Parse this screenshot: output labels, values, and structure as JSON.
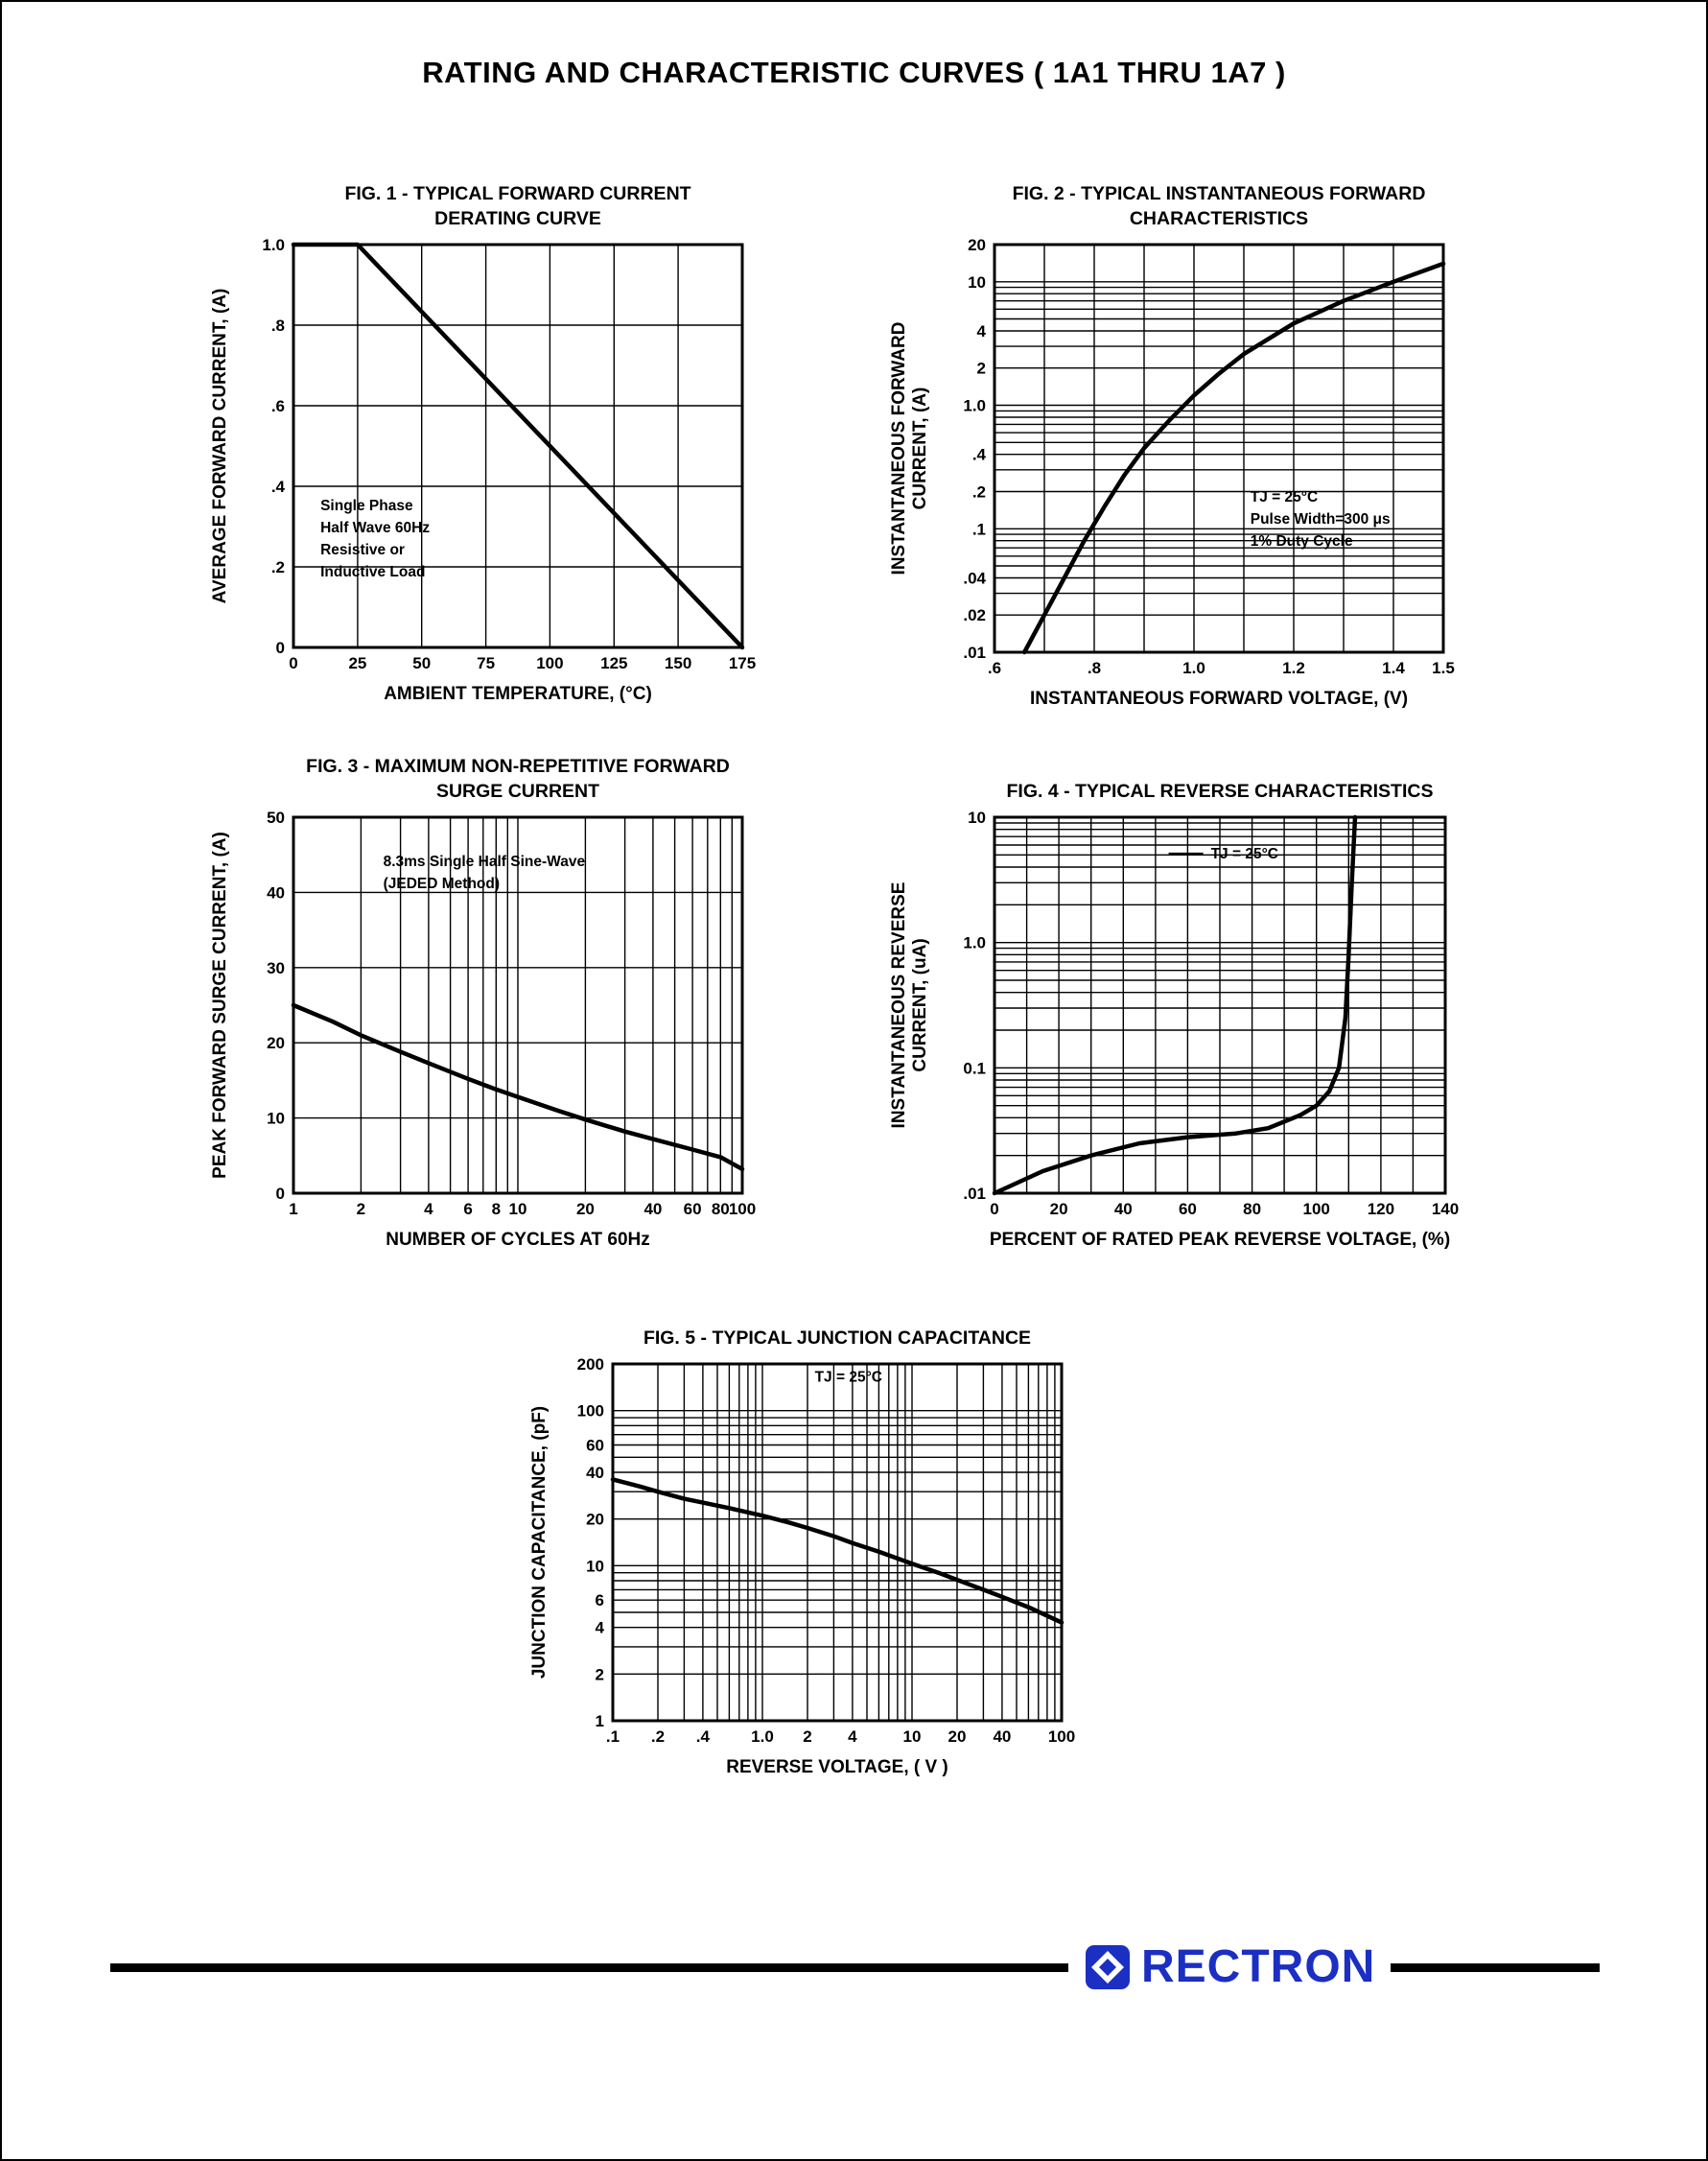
{
  "page": {
    "title": "RATING AND CHARACTERISTIC CURVES ( 1A1 THRU 1A7 )"
  },
  "footer": {
    "brand": "RECTRON",
    "icon": "rectron-mark"
  },
  "colors": {
    "brand_blue": "#1b2fc2",
    "ink": "#000000"
  },
  "chart_data": [
    {
      "type": "line",
      "title_line1": "FIG. 1 - TYPICAL FORWARD CURRENT",
      "title_line2": "DERATING CURVE",
      "xlabel": "AMBIENT TEMPERATURE, (°C)",
      "ylabel": "AVERAGE FORWARD CURRENT, (A)",
      "x": {
        "scale": "linear",
        "min": 0,
        "max": 175,
        "grid_step": 25,
        "ticks": [
          [
            0,
            "0"
          ],
          [
            25,
            "25"
          ],
          [
            50,
            "50"
          ],
          [
            75,
            "75"
          ],
          [
            100,
            "100"
          ],
          [
            125,
            "125"
          ],
          [
            150,
            "150"
          ],
          [
            175,
            "175"
          ]
        ]
      },
      "y": {
        "scale": "linear",
        "min": 0,
        "max": 1.0,
        "grid_step": 0.2,
        "ticks": [
          [
            1.0,
            "1.0"
          ],
          [
            0.8,
            ".8"
          ],
          [
            0.6,
            ".6"
          ],
          [
            0.4,
            ".4"
          ],
          [
            0.2,
            ".2"
          ],
          [
            0,
            "0"
          ]
        ]
      },
      "series": [
        {
          "name": "derating",
          "points": [
            [
              0,
              1.0
            ],
            [
              25,
              1.0
            ],
            [
              175,
              0
            ]
          ]
        }
      ],
      "annotations": [
        {
          "lines": [
            "Single Phase",
            "Half Wave 60Hz",
            "Resistive or",
            "Inductive Load"
          ],
          "fx": 0.06,
          "fy": 0.66
        }
      ]
    },
    {
      "type": "line",
      "title_line1": "FIG. 2 - TYPICAL INSTANTANEOUS FORWARD",
      "title_line2": "CHARACTERISTICS",
      "xlabel": "INSTANTANEOUS FORWARD VOLTAGE, (V)",
      "ylabel": "INSTANTANEOUS FORWARD\nCURRENT, (A)",
      "x": {
        "scale": "linear",
        "min": 0.6,
        "max": 1.5,
        "grid_step": 0.1,
        "ticks": [
          [
            0.6,
            ".6"
          ],
          [
            0.8,
            ".8"
          ],
          [
            1.0,
            "1.0"
          ],
          [
            1.2,
            "1.2"
          ],
          [
            1.4,
            "1.4"
          ],
          [
            1.5,
            "1.5"
          ]
        ]
      },
      "y": {
        "scale": "log",
        "min": 0.01,
        "max": 20,
        "grid": "log",
        "ticks": [
          [
            20,
            "20"
          ],
          [
            10,
            "10"
          ],
          [
            4,
            "4"
          ],
          [
            2,
            "2"
          ],
          [
            1,
            "1.0"
          ],
          [
            0.4,
            ".4"
          ],
          [
            0.2,
            ".2"
          ],
          [
            0.1,
            ".1"
          ],
          [
            0.04,
            ".04"
          ],
          [
            0.02,
            ".02"
          ],
          [
            0.01,
            ".01"
          ]
        ]
      },
      "series": [
        {
          "name": "forward-vi",
          "points": [
            [
              0.66,
              0.01
            ],
            [
              0.7,
              0.02
            ],
            [
              0.74,
              0.04
            ],
            [
              0.78,
              0.08
            ],
            [
              0.82,
              0.15
            ],
            [
              0.86,
              0.27
            ],
            [
              0.9,
              0.45
            ],
            [
              0.95,
              0.75
            ],
            [
              1.0,
              1.2
            ],
            [
              1.05,
              1.8
            ],
            [
              1.1,
              2.6
            ],
            [
              1.2,
              4.6
            ],
            [
              1.3,
              7.0
            ],
            [
              1.4,
              10.0
            ],
            [
              1.5,
              14.0
            ]
          ]
        }
      ],
      "annotations": [
        {
          "lines": [
            "TJ = 25°C",
            "Pulse Width=300 μs",
            "1% Duty Cycle"
          ],
          "fx": 0.57,
          "fy": 0.63
        }
      ]
    },
    {
      "type": "line",
      "title_line1": "FIG. 3 - MAXIMUM NON-REPETITIVE FORWARD",
      "title_line2": "SURGE CURRENT",
      "xlabel": "NUMBER OF CYCLES AT 60Hz",
      "ylabel": "PEAK FORWARD SURGE CURRENT, (A)",
      "x": {
        "scale": "log",
        "min": 1,
        "max": 100,
        "grid": "log",
        "ticks": [
          [
            1,
            "1"
          ],
          [
            2,
            "2"
          ],
          [
            4,
            "4"
          ],
          [
            6,
            "6"
          ],
          [
            8,
            "8"
          ],
          [
            10,
            "10"
          ],
          [
            20,
            "20"
          ],
          [
            40,
            "40"
          ],
          [
            60,
            "60"
          ],
          [
            80,
            "80"
          ],
          [
            100,
            "100"
          ]
        ]
      },
      "y": {
        "scale": "linear",
        "min": 0,
        "max": 50,
        "grid_step": 10,
        "ticks": [
          [
            50,
            "50"
          ],
          [
            40,
            "40"
          ],
          [
            30,
            "30"
          ],
          [
            20,
            "20"
          ],
          [
            10,
            "10"
          ],
          [
            0,
            "0"
          ]
        ]
      },
      "series": [
        {
          "name": "surge",
          "points": [
            [
              1,
              25
            ],
            [
              1.5,
              22.8
            ],
            [
              2,
              21
            ],
            [
              3,
              18.8
            ],
            [
              4,
              17.3
            ],
            [
              6,
              15.2
            ],
            [
              8,
              13.8
            ],
            [
              10,
              12.8
            ],
            [
              15,
              11
            ],
            [
              20,
              9.8
            ],
            [
              30,
              8.2
            ],
            [
              40,
              7.2
            ],
            [
              60,
              5.8
            ],
            [
              80,
              4.8
            ],
            [
              100,
              3.2
            ]
          ]
        }
      ],
      "annotations": [
        {
          "lines": [
            "8.3ms Single Half Sine-Wave",
            "(JEDED Method)"
          ],
          "fx": 0.2,
          "fy": 0.13
        }
      ]
    },
    {
      "type": "line",
      "title_line1": "FIG. 4 - TYPICAL REVERSE CHARACTERISTICS",
      "title_line2": "",
      "xlabel": "PERCENT OF RATED PEAK REVERSE VOLTAGE, (%)",
      "ylabel": "INSTANTANEOUS REVERSE\nCURRENT, (uA)",
      "x": {
        "scale": "linear",
        "min": 0,
        "max": 140,
        "grid_step": 10,
        "ticks": [
          [
            0,
            "0"
          ],
          [
            20,
            "20"
          ],
          [
            40,
            "40"
          ],
          [
            60,
            "60"
          ],
          [
            80,
            "80"
          ],
          [
            100,
            "100"
          ],
          [
            120,
            "120"
          ],
          [
            140,
            "140"
          ]
        ]
      },
      "y": {
        "scale": "log",
        "min": 0.01,
        "max": 10,
        "grid": "log",
        "ticks": [
          [
            10,
            "10"
          ],
          [
            1,
            "1.0"
          ],
          [
            0.1,
            "0.1"
          ],
          [
            0.01,
            ".01"
          ]
        ]
      },
      "series": [
        {
          "name": "reverse-leakage",
          "points": [
            [
              0,
              0.01
            ],
            [
              15,
              0.015
            ],
            [
              30,
              0.02
            ],
            [
              45,
              0.025
            ],
            [
              60,
              0.028
            ],
            [
              75,
              0.03
            ],
            [
              85,
              0.033
            ],
            [
              95,
              0.042
            ],
            [
              100,
              0.05
            ],
            [
              104,
              0.065
            ],
            [
              107,
              0.1
            ],
            [
              109,
              0.25
            ],
            [
              110,
              0.8
            ],
            [
              111,
              3
            ],
            [
              112,
              10
            ]
          ]
        }
      ],
      "annotations": [
        {
          "lines": [
            "TJ = 25°C"
          ],
          "fx": 0.48,
          "fy": 0.11,
          "leader": true
        }
      ]
    },
    {
      "type": "line",
      "title_line1": "FIG. 5 - TYPICAL JUNCTION CAPACITANCE",
      "title_line2": "",
      "xlabel": "REVERSE VOLTAGE, ( V )",
      "ylabel": "JUNCTION CAPACITANCE, (pF)",
      "x": {
        "scale": "log",
        "min": 0.1,
        "max": 100,
        "grid": "log",
        "ticks": [
          [
            0.1,
            ".1"
          ],
          [
            0.2,
            ".2"
          ],
          [
            0.4,
            ".4"
          ],
          [
            1,
            "1.0"
          ],
          [
            2,
            "2"
          ],
          [
            4,
            "4"
          ],
          [
            10,
            "10"
          ],
          [
            20,
            "20"
          ],
          [
            40,
            "40"
          ],
          [
            100,
            "100"
          ]
        ]
      },
      "y": {
        "scale": "log",
        "min": 1,
        "max": 200,
        "grid": "log",
        "ticks": [
          [
            200,
            "200"
          ],
          [
            100,
            "100"
          ],
          [
            60,
            "60"
          ],
          [
            40,
            "40"
          ],
          [
            20,
            "20"
          ],
          [
            10,
            "10"
          ],
          [
            6,
            "6"
          ],
          [
            4,
            "4"
          ],
          [
            2,
            "2"
          ],
          [
            1,
            "1"
          ]
        ]
      },
      "series": [
        {
          "name": "junction-capacitance",
          "points": [
            [
              0.1,
              36
            ],
            [
              0.15,
              32.5
            ],
            [
              0.2,
              30
            ],
            [
              0.3,
              27
            ],
            [
              0.4,
              25.5
            ],
            [
              0.6,
              23.5
            ],
            [
              1,
              21
            ],
            [
              1.5,
              19
            ],
            [
              2,
              17.5
            ],
            [
              3,
              15.5
            ],
            [
              4,
              14
            ],
            [
              6,
              12.3
            ],
            [
              10,
              10.3
            ],
            [
              15,
              9
            ],
            [
              20,
              8.1
            ],
            [
              30,
              7
            ],
            [
              40,
              6.3
            ],
            [
              60,
              5.4
            ],
            [
              100,
              4.3
            ]
          ]
        }
      ],
      "annotations": [
        {
          "lines": [
            "TJ = 25°C"
          ],
          "fx": 0.45,
          "fy": 0.05
        }
      ]
    }
  ]
}
